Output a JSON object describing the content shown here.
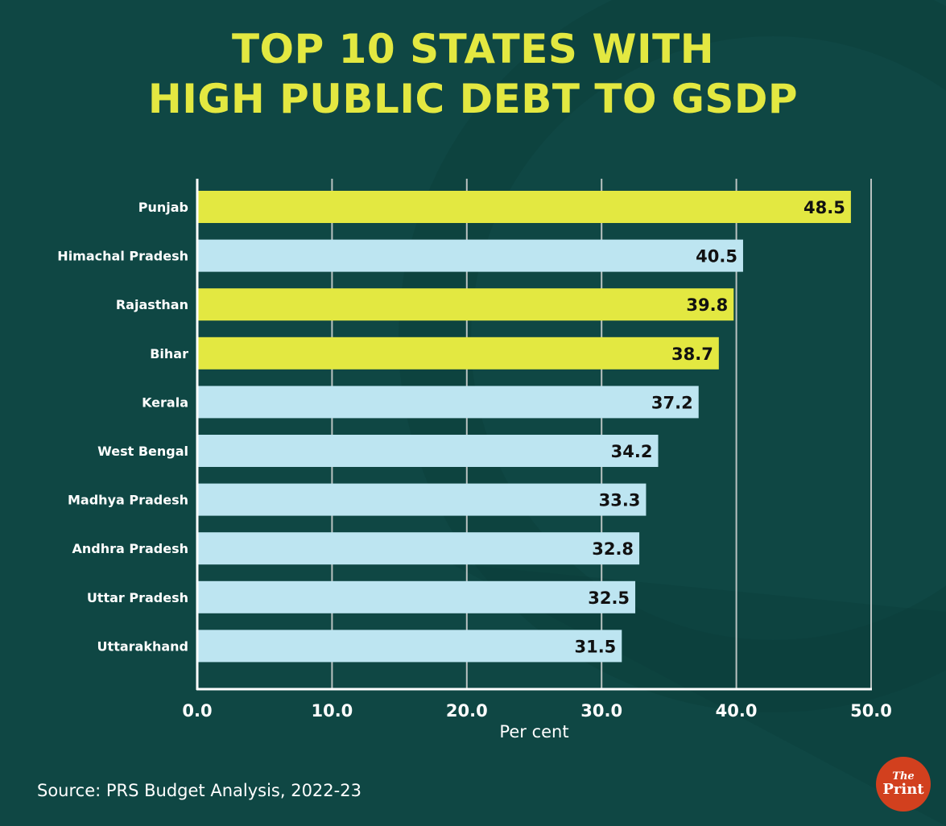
{
  "title_line1": "TOP 10 STATES WITH",
  "title_line2": "HIGH PUBLIC DEBT TO GSDP",
  "source": "Source: PRS Budget Analysis, 2022-23",
  "logo": {
    "the": "The",
    "print": "Print"
  },
  "colors": {
    "highlight": "#e3e841",
    "normal": "#bde5f1",
    "background": "#0f4744",
    "text": "#ffffff",
    "value_text": "#111111"
  },
  "chart_data": {
    "type": "bar",
    "orientation": "horizontal",
    "title": "TOP 10 STATES WITH HIGH PUBLIC DEBT TO GSDP",
    "xlabel": "Per cent",
    "ylabel": "",
    "xlim": [
      0,
      50
    ],
    "grid": true,
    "tick_values": [
      0,
      10,
      20,
      30,
      40,
      50
    ],
    "tick_labels": [
      "0.0",
      "10.0",
      "20.0",
      "30.0",
      "40.0",
      "50.0"
    ],
    "categories": [
      "Punjab",
      "Himachal Pradesh",
      "Rajasthan",
      "Bihar",
      "Kerala",
      "West Bengal",
      "Madhya Pradesh",
      "Andhra Pradesh",
      "Uttar Pradesh",
      "Uttarakhand"
    ],
    "values": [
      48.5,
      40.5,
      39.8,
      38.7,
      37.2,
      34.2,
      33.3,
      32.8,
      32.5,
      31.5
    ],
    "value_labels": [
      "48.5",
      "40.5",
      "39.8",
      "38.7",
      "37.2",
      "34.2",
      "33.3",
      "32.8",
      "32.5",
      "31.5"
    ],
    "highlighted": [
      true,
      false,
      true,
      true,
      false,
      false,
      false,
      false,
      false,
      false
    ]
  }
}
